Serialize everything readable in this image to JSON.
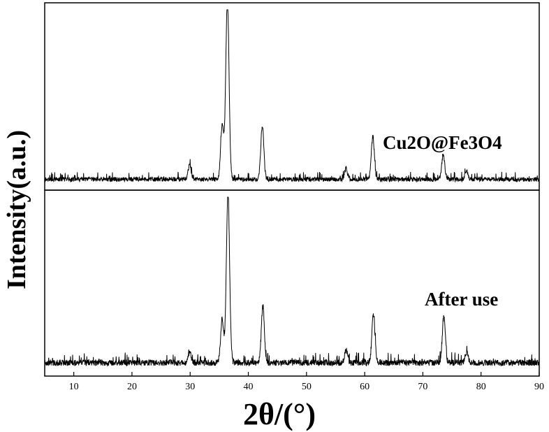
{
  "chart_data": {
    "type": "line",
    "xlabel": "2θ/(°)",
    "ylabel": "Intensity(a.u.)",
    "xlim": [
      5,
      90
    ],
    "xticks": [
      10,
      20,
      30,
      40,
      50,
      60,
      70,
      80,
      90
    ],
    "grid": false,
    "legend": "none",
    "line_color": "#000000",
    "series": [
      {
        "name": "Cu2O@Fe3O4",
        "baseline": 0.04,
        "noise": 0.025,
        "peaks": [
          {
            "x": 29.9,
            "height": 0.08
          },
          {
            "x": 35.5,
            "height": 0.3
          },
          {
            "x": 36.4,
            "height": 1.0
          },
          {
            "x": 42.4,
            "height": 0.3
          },
          {
            "x": 56.8,
            "height": 0.06
          },
          {
            "x": 61.4,
            "height": 0.24
          },
          {
            "x": 73.5,
            "height": 0.14
          },
          {
            "x": 77.5,
            "height": 0.05
          }
        ]
      },
      {
        "name": "After use",
        "baseline": 0.05,
        "noise": 0.035,
        "peaks": [
          {
            "x": 29.9,
            "height": 0.06
          },
          {
            "x": 35.5,
            "height": 0.25
          },
          {
            "x": 36.5,
            "height": 0.95
          },
          {
            "x": 42.5,
            "height": 0.32
          },
          {
            "x": 56.8,
            "height": 0.07
          },
          {
            "x": 61.5,
            "height": 0.27
          },
          {
            "x": 73.6,
            "height": 0.26
          },
          {
            "x": 77.5,
            "height": 0.06
          }
        ]
      }
    ]
  }
}
